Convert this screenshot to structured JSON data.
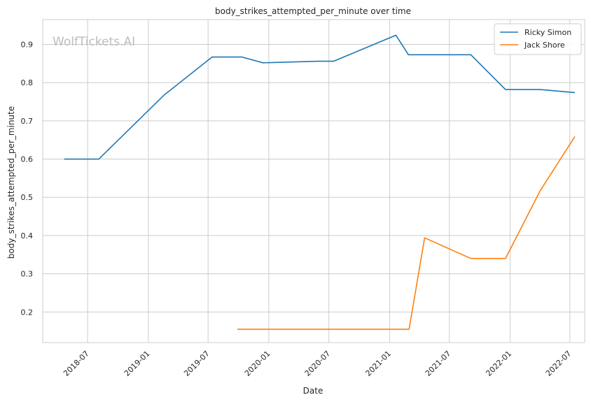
{
  "chart_data": {
    "type": "line",
    "title": "body_strikes_attempted_per_minute over time",
    "xlabel": "Date",
    "ylabel": "body_strikes_attempted_per_minute",
    "watermark": "WolfTickets.AI",
    "x_ticks": [
      "2018-07",
      "2019-01",
      "2019-07",
      "2020-01",
      "2020-07",
      "2021-01",
      "2021-07",
      "2022-01",
      "2022-07"
    ],
    "y_ticks": [
      "0.2",
      "0.3",
      "0.4",
      "0.5",
      "0.6",
      "0.7",
      "0.8",
      "0.9"
    ],
    "xlim": [
      "2018-02-15",
      "2022-08-15"
    ],
    "ylim": [
      0.12,
      0.965
    ],
    "grid": true,
    "legend_position": "top-right",
    "series": [
      {
        "name": "Ricky Simon",
        "color": "#1f77b4",
        "points": [
          {
            "x": "2018-04-21",
            "y": 0.6
          },
          {
            "x": "2018-08-04",
            "y": 0.6
          },
          {
            "x": "2019-02-17",
            "y": 0.767
          },
          {
            "x": "2019-07-13",
            "y": 0.867
          },
          {
            "x": "2019-10-12",
            "y": 0.867
          },
          {
            "x": "2019-12-14",
            "y": 0.852
          },
          {
            "x": "2020-05-30",
            "y": 0.856
          },
          {
            "x": "2020-07-15",
            "y": 0.856
          },
          {
            "x": "2021-01-20",
            "y": 0.924
          },
          {
            "x": "2021-02-27",
            "y": 0.873
          },
          {
            "x": "2021-09-04",
            "y": 0.873
          },
          {
            "x": "2021-12-18",
            "y": 0.782
          },
          {
            "x": "2022-04-02",
            "y": 0.782
          },
          {
            "x": "2022-07-16",
            "y": 0.774
          }
        ]
      },
      {
        "name": "Jack Shore",
        "color": "#ff7f0e",
        "points": [
          {
            "x": "2019-09-28",
            "y": 0.155
          },
          {
            "x": "2021-03-01",
            "y": 0.155
          },
          {
            "x": "2021-04-17",
            "y": 0.394
          },
          {
            "x": "2021-09-04",
            "y": 0.34
          },
          {
            "x": "2021-12-18",
            "y": 0.34
          },
          {
            "x": "2022-04-02",
            "y": 0.517
          },
          {
            "x": "2022-07-16",
            "y": 0.659
          }
        ]
      }
    ]
  }
}
